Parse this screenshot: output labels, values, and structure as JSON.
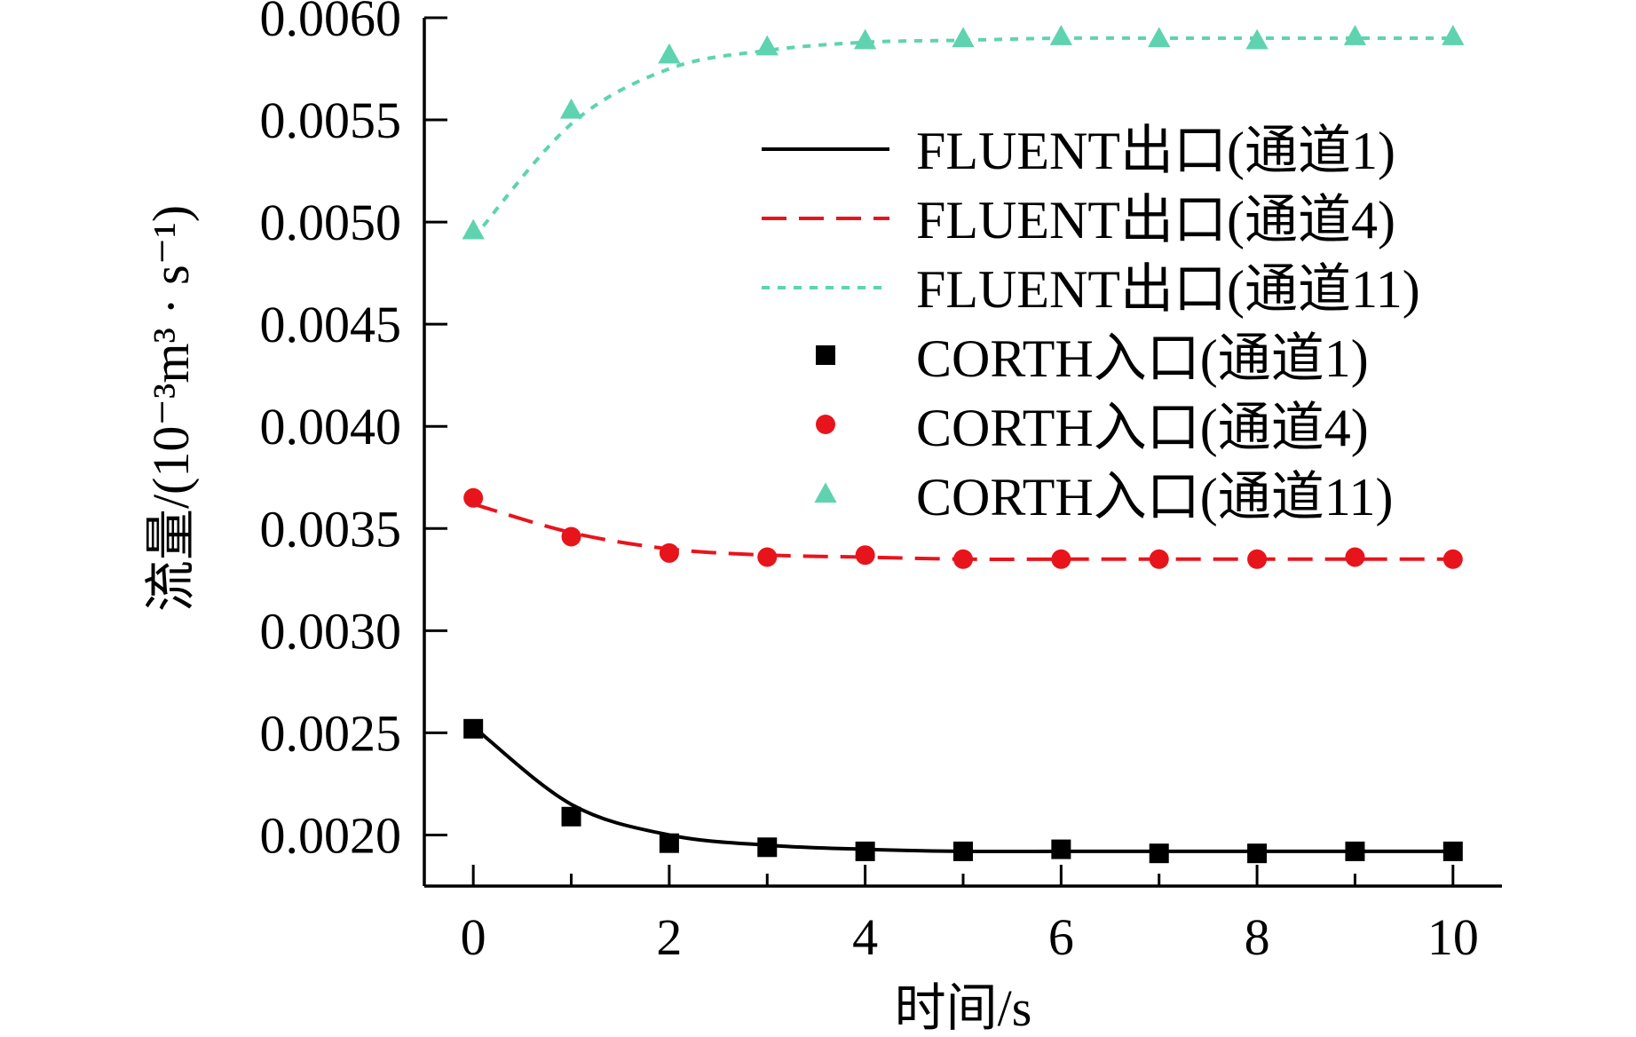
{
  "chart_data": {
    "type": "line",
    "xlabel": "时间/s",
    "ylabel": "流量/(10⁻³m³ · s⁻¹)",
    "xlim": [
      -0.5,
      10.5
    ],
    "ylim": [
      0.00175,
      0.006
    ],
    "xticks": [
      "0",
      "2",
      "4",
      "6",
      "8",
      "10"
    ],
    "yticks": [
      "0.0020",
      "0.0025",
      "0.0030",
      "0.0035",
      "0.0040",
      "0.0045",
      "0.0050",
      "0.0055",
      "0.0060"
    ],
    "x": [
      0,
      1,
      2,
      3,
      4,
      5,
      6,
      7,
      8,
      9,
      10
    ],
    "lines": [
      {
        "name": "FLUENT出口(通道1)",
        "color": "#000000",
        "style": "solid",
        "values": [
          0.00253,
          0.00215,
          0.002,
          0.00195,
          0.00193,
          0.00192,
          0.00192,
          0.00192,
          0.00192,
          0.00192,
          0.00192
        ]
      },
      {
        "name": "FLUENT出口(通道4)",
        "color": "#e8141c",
        "style": "dashed",
        "values": [
          0.00362,
          0.00348,
          0.0034,
          0.00337,
          0.00336,
          0.00335,
          0.00335,
          0.00335,
          0.00335,
          0.00335,
          0.00335
        ]
      },
      {
        "name": "FLUENT出口(通道11)",
        "color": "#5fd3b0",
        "style": "dotted",
        "values": [
          0.00492,
          0.00548,
          0.00575,
          0.00584,
          0.00588,
          0.00589,
          0.0059,
          0.0059,
          0.0059,
          0.0059,
          0.0059
        ]
      }
    ],
    "markers": [
      {
        "name": "CORTH入口(通道1)",
        "color": "#000000",
        "shape": "square",
        "values": [
          0.00252,
          0.00209,
          0.00196,
          0.00194,
          0.00192,
          0.00192,
          0.00193,
          0.00191,
          0.00191,
          0.00192,
          0.00192
        ]
      },
      {
        "name": "CORTH入口(通道4)",
        "color": "#e8141c",
        "shape": "circle",
        "values": [
          0.00365,
          0.00346,
          0.00338,
          0.00336,
          0.00337,
          0.00335,
          0.00335,
          0.00335,
          0.00335,
          0.00336,
          0.00335
        ]
      },
      {
        "name": "CORTH入口(通道11)",
        "color": "#5fd3b0",
        "shape": "triangle",
        "values": [
          0.00496,
          0.00555,
          0.00582,
          0.00586,
          0.00589,
          0.0059,
          0.00591,
          0.0059,
          0.00589,
          0.00591,
          0.00591
        ]
      }
    ],
    "legend": {
      "placement": "top-right",
      "entries": [
        {
          "label": "FLUENT出口(通道1)",
          "kind": "line",
          "color": "#000000",
          "style": "solid"
        },
        {
          "label": "FLUENT出口(通道4)",
          "kind": "line",
          "color": "#e8141c",
          "style": "dashed"
        },
        {
          "label": "FLUENT出口(通道11)",
          "kind": "line",
          "color": "#5fd3b0",
          "style": "dotted"
        },
        {
          "label": "CORTH入口(通道1)",
          "kind": "marker",
          "color": "#000000",
          "shape": "square"
        },
        {
          "label": "CORTH入口(通道4)",
          "kind": "marker",
          "color": "#e8141c",
          "shape": "circle"
        },
        {
          "label": "CORTH入口(通道11)",
          "kind": "marker",
          "color": "#5fd3b0",
          "shape": "triangle"
        }
      ]
    },
    "grid": false
  }
}
